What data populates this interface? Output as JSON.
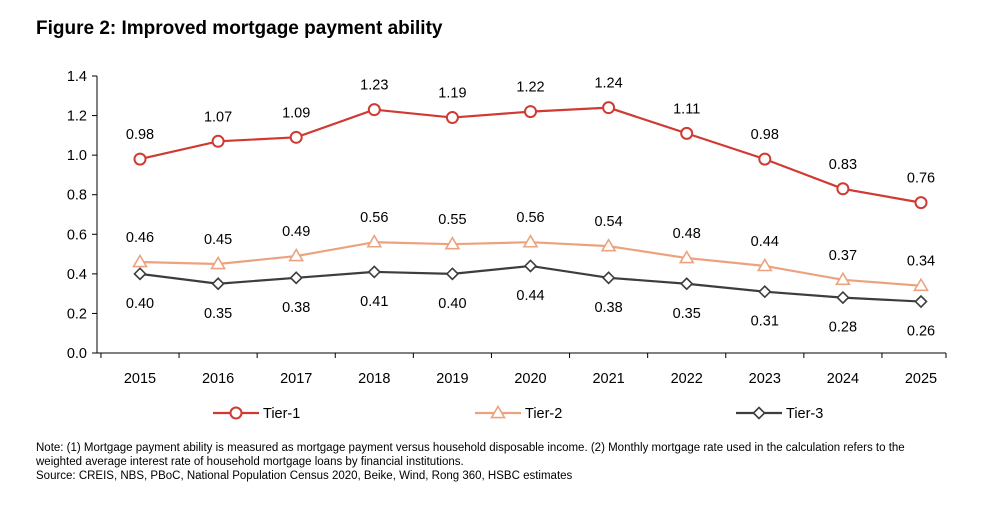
{
  "figure": {
    "title": "Figure 2: Improved mortgage payment ability",
    "note_line1": "Note: (1) Mortgage payment ability is measured as mortgage payment versus household disposable income. (2) Monthly mortgage rate used in the calculation refers to the",
    "note_line2": "weighted average interest rate of household mortgage loans by financial institutions.",
    "source": "Source: CREIS, NBS, PBoC, National Population Census 2020, Beike, Wind, Rong 360, HSBC estimates"
  },
  "chart_data": {
    "type": "line",
    "title": "Figure 2: Improved mortgage payment ability",
    "xlabel": "",
    "ylabel": "",
    "x": [
      "2015",
      "2016",
      "2017",
      "2018",
      "2019",
      "2020",
      "2021",
      "2022",
      "2023",
      "2024",
      "2025"
    ],
    "ylim": [
      0,
      1.4
    ],
    "yticks": [
      "0.0",
      "0.2",
      "0.4",
      "0.6",
      "0.8",
      "1.0",
      "1.2",
      "1.4"
    ],
    "grid": false,
    "legend": "bottom",
    "series": [
      {
        "name": "Tier-1",
        "color": "#d03a33",
        "marker": "circle",
        "labels": "above",
        "values": [
          0.98,
          1.07,
          1.09,
          1.23,
          1.19,
          1.22,
          1.24,
          1.11,
          0.98,
          0.83,
          0.76
        ],
        "value_labels": [
          "0.98",
          "1.07",
          "1.09",
          "1.23",
          "1.19",
          "1.22",
          "1.24",
          "1.11",
          "0.98",
          "0.83",
          "0.76"
        ]
      },
      {
        "name": "Tier-2",
        "color": "#eba37f",
        "marker": "triangle",
        "labels": "above",
        "values": [
          0.46,
          0.45,
          0.49,
          0.56,
          0.55,
          0.56,
          0.54,
          0.48,
          0.44,
          0.37,
          0.34
        ],
        "value_labels": [
          "0.46",
          "0.45",
          "0.49",
          "0.56",
          "0.55",
          "0.56",
          "0.54",
          "0.48",
          "0.44",
          "0.37",
          "0.34"
        ]
      },
      {
        "name": "Tier-3",
        "color": "#3d3d3d",
        "marker": "diamond",
        "labels": "below",
        "values": [
          0.4,
          0.35,
          0.38,
          0.41,
          0.4,
          0.44,
          0.38,
          0.35,
          0.31,
          0.28,
          0.26
        ],
        "value_labels": [
          "0.40",
          "0.35",
          "0.38",
          "0.41",
          "0.40",
          "0.44",
          "0.38",
          "0.35",
          "0.31",
          "0.28",
          "0.26"
        ]
      }
    ]
  }
}
